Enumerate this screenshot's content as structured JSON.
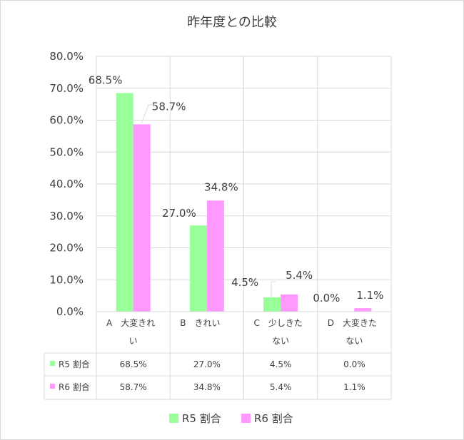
{
  "chart_data": {
    "type": "bar",
    "title": "昨年度との比較",
    "categories": [
      [
        "A　大変きれ",
        "い"
      ],
      [
        "B　きれい"
      ],
      [
        "C　少しきた",
        "ない"
      ],
      [
        "D　大変きた",
        "ない"
      ]
    ],
    "series": [
      {
        "name": "R5 割合",
        "values": [
          68.5,
          27.0,
          4.5,
          0.0
        ],
        "labels": [
          "68.5%",
          "27.0%",
          "4.5%",
          "0.0%"
        ],
        "color": "#99ff99"
      },
      {
        "name": "R6 割合",
        "values": [
          58.7,
          34.8,
          5.4,
          1.1
        ],
        "labels": [
          "58.7%",
          "34.8%",
          "5.4%",
          "1.1%"
        ],
        "color": "#ff99ff"
      }
    ],
    "yaxis": {
      "min": 0,
      "max": 80,
      "step": 10,
      "tick_labels": [
        "0.0%",
        "10.0%",
        "20.0%",
        "30.0%",
        "40.0%",
        "50.0%",
        "60.0%",
        "70.0%",
        "80.0%"
      ]
    },
    "grid": true,
    "data_table": true,
    "legend": "bottom"
  }
}
